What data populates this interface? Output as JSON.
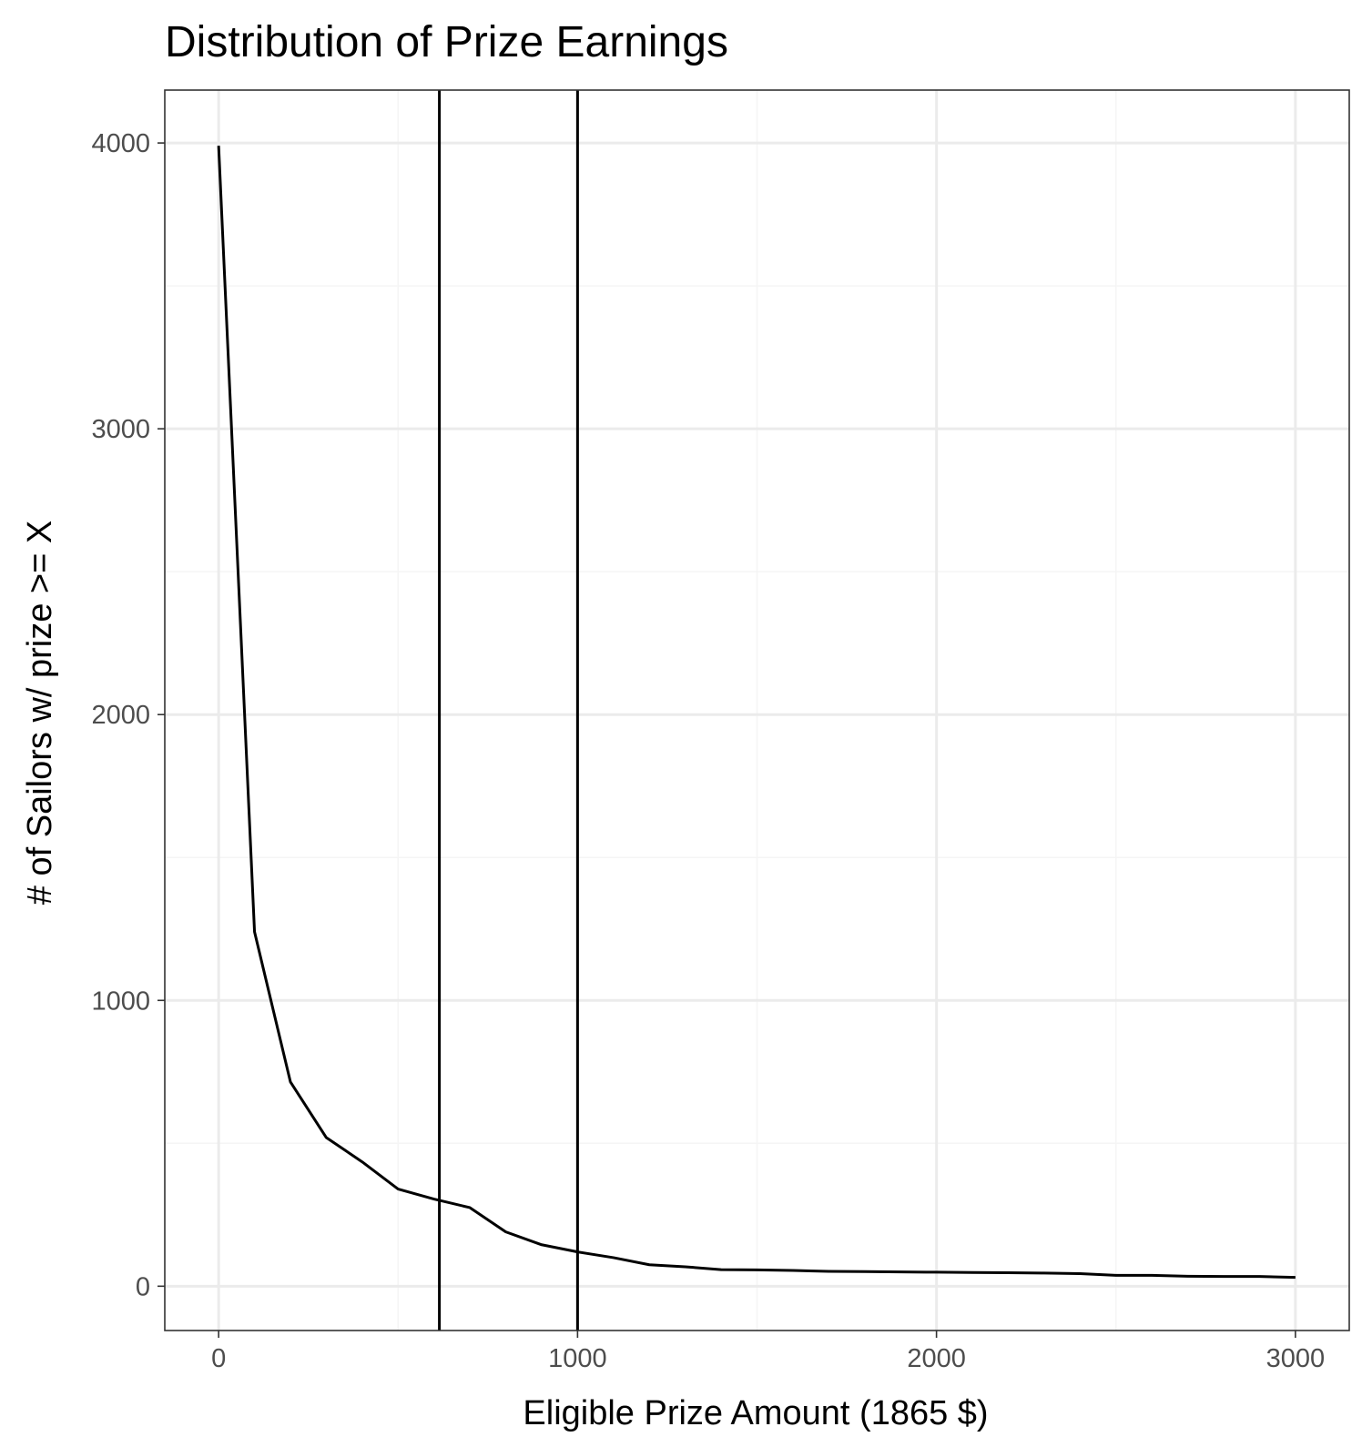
{
  "chart_data": {
    "type": "line",
    "title": "Distribution of Prize Earnings",
    "xlabel": "Eligible Prize Amount (1865 $)",
    "ylabel": "# of Sailors w/ prize >= X",
    "xlim": [
      -150,
      3150
    ],
    "ylim": [
      -155,
      4185
    ],
    "x_ticks": [
      0,
      1000,
      2000,
      3000
    ],
    "x_tick_labels": [
      "0",
      "1000",
      "2000",
      "3000"
    ],
    "y_ticks": [
      0,
      1000,
      2000,
      3000,
      4000
    ],
    "y_tick_labels": [
      "0",
      "1000",
      "2000",
      "3000",
      "4000"
    ],
    "x_minor_ticks": [
      500,
      1500,
      2500
    ],
    "y_minor_ticks": [
      500,
      1500,
      2500,
      3500
    ],
    "grid": true,
    "vertical_lines": [
      615,
      1000
    ],
    "series": [
      {
        "x": [
          0,
          100,
          200,
          300,
          400,
          500,
          600,
          700,
          800,
          900,
          1000,
          1100,
          1200,
          1300,
          1400,
          1500,
          1600,
          1700,
          1800,
          1900,
          2000,
          2100,
          2200,
          2300,
          2400,
          2500,
          2600,
          2700,
          2800,
          2900,
          3000
        ],
        "y": [
          3990,
          1240,
          715,
          520,
          435,
          340,
          305,
          275,
          190,
          145,
          120,
          100,
          75,
          68,
          58,
          57,
          55,
          52,
          51,
          50,
          49,
          48,
          47,
          46,
          44,
          38,
          38,
          35,
          34,
          34,
          31
        ]
      }
    ],
    "colors": {
      "line": "#000000",
      "grid_major": "#ebebeb",
      "grid_minor": "#f5f5f5",
      "panel_border": "#333333",
      "tick_text": "#4d4d4d"
    }
  }
}
